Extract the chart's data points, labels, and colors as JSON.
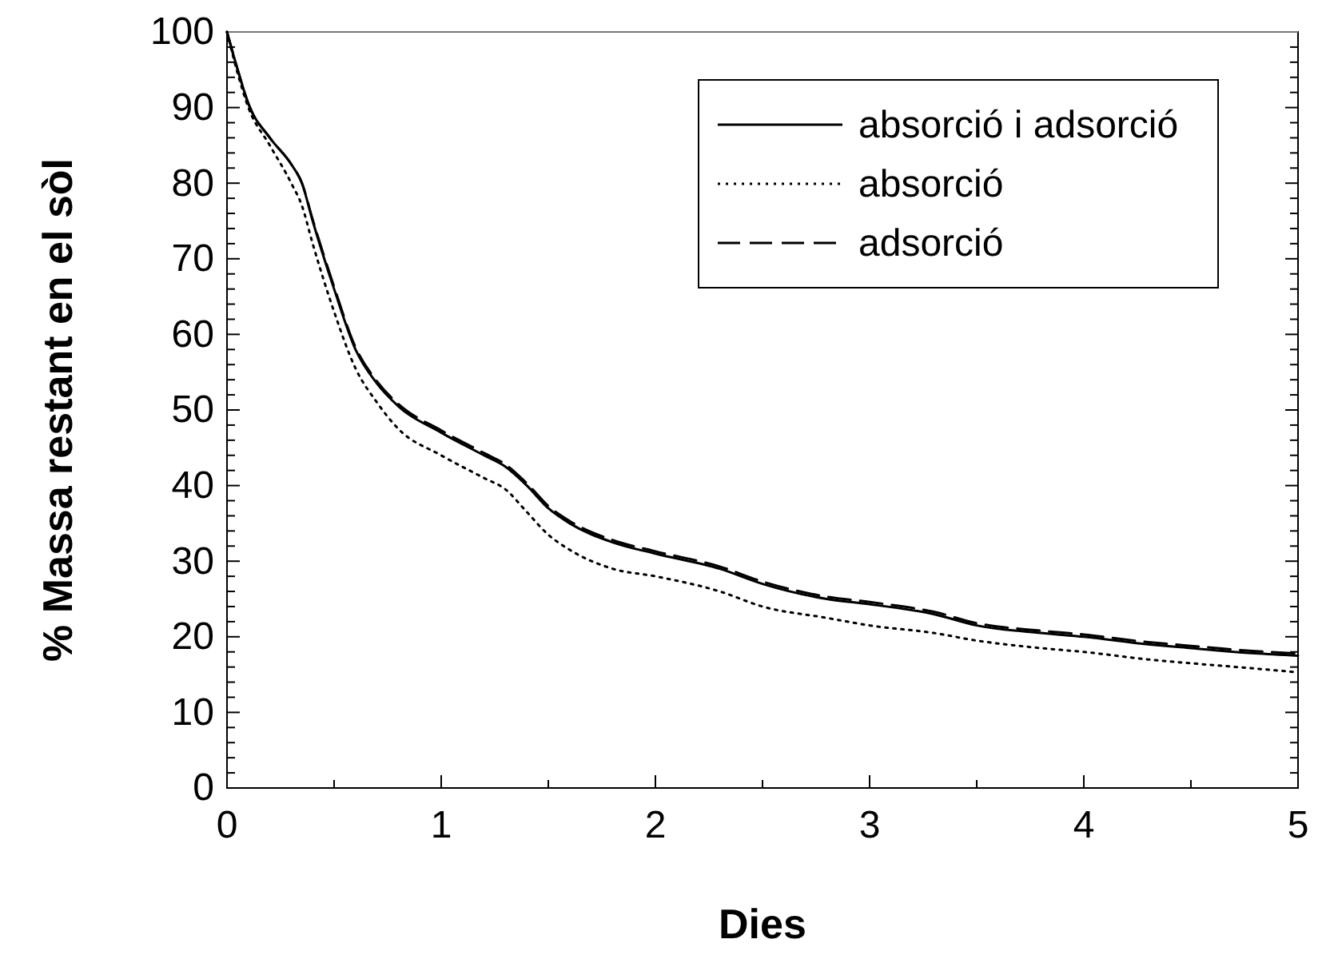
{
  "chart_data": {
    "type": "line",
    "xlabel": "Dies",
    "ylabel": "% Massa restant en el sòl",
    "xlim": [
      0,
      5
    ],
    "xticks": [
      0,
      1,
      2,
      3,
      4,
      5
    ],
    "ylim": [
      0,
      100
    ],
    "yticks": [
      0,
      10,
      20,
      30,
      40,
      50,
      60,
      70,
      80,
      90,
      100
    ],
    "grid": false,
    "legend": "top right",
    "marker": "none",
    "series": [
      {
        "name": "absorció i adsorció",
        "color": "#000000",
        "line_style": "solid",
        "x": [
          0,
          0.05,
          0.1,
          0.2,
          0.3,
          0.35,
          0.4,
          0.5,
          0.6,
          0.7,
          0.8,
          1.0,
          1.2,
          1.3,
          1.4,
          1.5,
          1.6,
          1.8,
          2.0,
          2.3,
          2.5,
          2.8,
          3.0,
          3.3,
          3.5,
          3.8,
          4.0,
          4.3,
          4.5,
          4.8,
          5.0
        ],
        "values": [
          100,
          95,
          90.5,
          86,
          82.5,
          80,
          75,
          66,
          58,
          53.5,
          50.5,
          47,
          44,
          42.5,
          40,
          37,
          35,
          32.5,
          31,
          29,
          27,
          25,
          24.3,
          23,
          21.5,
          20.5,
          20,
          19,
          18.5,
          17.8,
          17.5
        ]
      },
      {
        "name": "absorció",
        "color": "#000000",
        "line_style": "dotted",
        "x": [
          0,
          0.05,
          0.1,
          0.2,
          0.3,
          0.35,
          0.4,
          0.5,
          0.6,
          0.7,
          0.8,
          1.0,
          1.2,
          1.3,
          1.4,
          1.5,
          1.6,
          1.8,
          2.0,
          2.3,
          2.5,
          2.8,
          3.0,
          3.3,
          3.5,
          3.8,
          4.0,
          4.3,
          4.5,
          4.8,
          5.0
        ],
        "values": [
          100,
          94.5,
          90,
          85,
          80,
          77,
          72,
          63,
          55.5,
          51,
          47.5,
          44,
          41,
          39.5,
          36.5,
          33.5,
          31.5,
          29,
          28,
          26,
          24,
          22.5,
          21.5,
          20.5,
          19.5,
          18.5,
          18,
          17,
          16.5,
          15.8,
          15.3
        ]
      },
      {
        "name": "adsorció",
        "color": "#000000",
        "line_style": "dashed",
        "x": [
          0,
          0.05,
          0.1,
          0.2,
          0.3,
          0.35,
          0.4,
          0.5,
          0.6,
          0.7,
          0.8,
          1.0,
          1.2,
          1.3,
          1.4,
          1.5,
          1.6,
          1.8,
          2.0,
          2.3,
          2.5,
          2.8,
          3.0,
          3.3,
          3.5,
          3.8,
          4.0,
          4.3,
          4.5,
          4.8,
          5.0
        ],
        "values": [
          100,
          95,
          90.5,
          86,
          82.5,
          80,
          75.2,
          66.3,
          58.3,
          53.8,
          50.8,
          47.3,
          44.3,
          42.8,
          40.3,
          37.3,
          35.3,
          32.8,
          31.3,
          29.3,
          27.3,
          25.3,
          24.6,
          23.3,
          21.8,
          20.8,
          20.3,
          19.3,
          18.8,
          18.1,
          17.8
        ]
      }
    ]
  }
}
